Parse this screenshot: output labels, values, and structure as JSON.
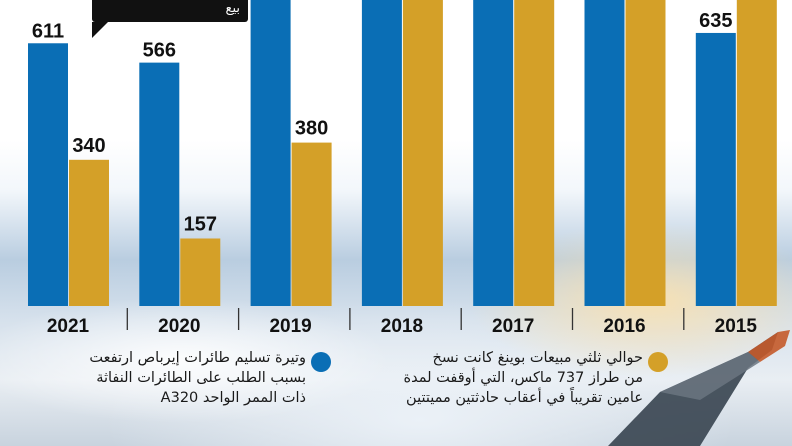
{
  "chart_data": {
    "type": "bar",
    "categories": [
      "2021",
      "2020",
      "2019",
      "2018",
      "2017",
      "2016",
      "2015"
    ],
    "series": [
      {
        "name": "",
        "color": "#0a6eb5",
        "values": [
          611,
          566,
          null,
          null,
          null,
          null,
          635
        ]
      },
      {
        "name": "",
        "color": "#d4a028",
        "values": [
          340,
          157,
          380,
          null,
          null,
          null,
          null
        ]
      }
    ],
    "data_labels": {
      "blue": [
        "611",
        "566",
        "",
        "",
        "",
        "",
        "635"
      ],
      "gold": [
        "340",
        "157",
        "380",
        "",
        "",
        "",
        ""
      ]
    },
    "ylim": [
      0,
      720
    ],
    "grid": false,
    "legend_position": "bottom"
  },
  "legend": {
    "blue_text": "وتيرة تسليم طائرات إيرباص ارتفعت\nبسبب الطلب على الطائرات النفاثة\nذات الممر الواحد A320",
    "gold_text": "حوالي ثلثي مبيعات بوينغ كانت نسخ\nمن طراز 737 ماكس، التي أوقفت لمدة\nعامين تقريباً في أعقاب حادثتين مميتتين",
    "blue_color": "#0a6eb5",
    "gold_color": "#d4a028"
  },
  "tooltip": {
    "text": "بيع"
  }
}
